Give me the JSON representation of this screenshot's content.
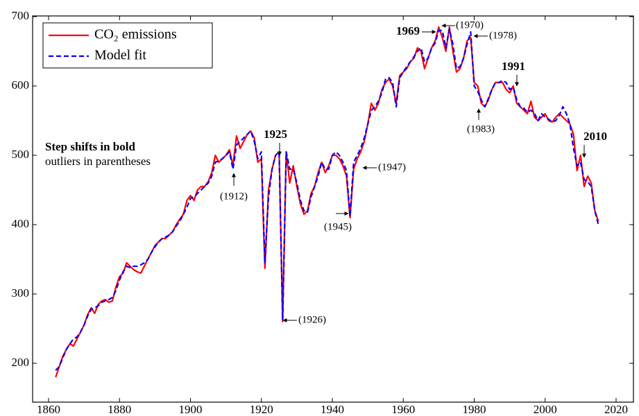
{
  "chart_data": {
    "type": "line",
    "x": [
      1862,
      1863,
      1864,
      1865,
      1866,
      1867,
      1868,
      1869,
      1870,
      1871,
      1872,
      1873,
      1874,
      1875,
      1876,
      1877,
      1878,
      1879,
      1880,
      1881,
      1882,
      1883,
      1884,
      1885,
      1886,
      1887,
      1888,
      1889,
      1890,
      1891,
      1892,
      1893,
      1894,
      1895,
      1896,
      1897,
      1898,
      1899,
      1900,
      1901,
      1902,
      1903,
      1904,
      1905,
      1906,
      1907,
      1908,
      1909,
      1910,
      1911,
      1912,
      1913,
      1914,
      1915,
      1916,
      1917,
      1918,
      1919,
      1920,
      1921,
      1922,
      1923,
      1924,
      1925,
      1926,
      1927,
      1928,
      1929,
      1930,
      1931,
      1932,
      1933,
      1934,
      1935,
      1936,
      1937,
      1938,
      1939,
      1940,
      1941,
      1942,
      1943,
      1944,
      1945,
      1946,
      1947,
      1948,
      1949,
      1950,
      1951,
      1952,
      1953,
      1954,
      1955,
      1956,
      1957,
      1958,
      1959,
      1960,
      1961,
      1962,
      1963,
      1964,
      1965,
      1966,
      1967,
      1968,
      1969,
      1970,
      1971,
      1972,
      1973,
      1974,
      1975,
      1976,
      1977,
      1978,
      1979,
      1980,
      1981,
      1982,
      1983,
      1984,
      1985,
      1986,
      1987,
      1988,
      1989,
      1990,
      1991,
      1992,
      1993,
      1994,
      1995,
      1996,
      1997,
      1998,
      1999,
      2000,
      2001,
      2002,
      2003,
      2004,
      2005,
      2006,
      2007,
      2008,
      2009,
      2010,
      2011,
      2012,
      2013,
      2014,
      2015
    ],
    "series": [
      {
        "name": "CO₂ emissions",
        "color": "#ff0000",
        "dash": false,
        "values": [
          180,
          195,
          210,
          220,
          228,
          225,
          235,
          245,
          255,
          270,
          280,
          272,
          285,
          290,
          292,
          288,
          290,
          310,
          325,
          330,
          345,
          340,
          335,
          332,
          330,
          340,
          350,
          360,
          370,
          375,
          380,
          380,
          385,
          390,
          400,
          408,
          415,
          435,
          442,
          435,
          450,
          455,
          455,
          462,
          475,
          500,
          490,
          495,
          500,
          508,
          485,
          528,
          510,
          520,
          530,
          535,
          525,
          490,
          495,
          337,
          450,
          480,
          500,
          505,
          260,
          505,
          460,
          485,
          455,
          430,
          415,
          420,
          445,
          455,
          475,
          490,
          475,
          485,
          500,
          500,
          495,
          485,
          470,
          410,
          480,
          495,
          505,
          520,
          545,
          575,
          565,
          575,
          595,
          605,
          610,
          600,
          575,
          615,
          620,
          625,
          635,
          640,
          655,
          650,
          625,
          640,
          655,
          665,
          685,
          670,
          650,
          685,
          650,
          620,
          625,
          640,
          665,
          670,
          605,
          600,
          575,
          570,
          580,
          595,
          605,
          605,
          605,
          595,
          590,
          600,
          575,
          570,
          565,
          560,
          578,
          555,
          550,
          555,
          560,
          550,
          548,
          555,
          560,
          555,
          550,
          545,
          530,
          478,
          500,
          455,
          470,
          460,
          420,
          405
        ]
      },
      {
        "name": "Model fit",
        "color": "#0000ff",
        "dash": true,
        "values": [
          190,
          195,
          208,
          220,
          228,
          235,
          238,
          245,
          255,
          268,
          278,
          280,
          283,
          288,
          290,
          292,
          295,
          305,
          320,
          332,
          340,
          338,
          340,
          340,
          342,
          345,
          350,
          360,
          368,
          375,
          380,
          382,
          385,
          390,
          398,
          405,
          415,
          425,
          438,
          440,
          445,
          450,
          455,
          460,
          470,
          490,
          492,
          495,
          500,
          505,
          480,
          515,
          520,
          525,
          530,
          535,
          520,
          495,
          505,
          345,
          440,
          480,
          500,
          505,
          262,
          505,
          480,
          480,
          460,
          435,
          420,
          418,
          440,
          455,
          470,
          490,
          480,
          480,
          500,
          505,
          500,
          490,
          478,
          412,
          490,
          500,
          510,
          525,
          545,
          565,
          570,
          578,
          590,
          610,
          612,
          605,
          570,
          612,
          620,
          628,
          635,
          642,
          650,
          655,
          635,
          640,
          655,
          662,
          680,
          680,
          655,
          682,
          660,
          625,
          628,
          640,
          660,
          678,
          600,
          592,
          580,
          570,
          582,
          595,
          605,
          605,
          608,
          605,
          595,
          598,
          580,
          570,
          568,
          562,
          565,
          560,
          550,
          560,
          555,
          552,
          548,
          550,
          558,
          570,
          560,
          545,
          510,
          485,
          490,
          465,
          462,
          455,
          420,
          400
        ]
      }
    ],
    "xlim": [
      1855.5,
      2024.9
    ],
    "ylim": [
      144,
      701
    ],
    "xticks": [
      1860,
      1880,
      1900,
      1920,
      1940,
      1960,
      1980,
      2000,
      2020
    ],
    "yticks": [
      200,
      300,
      400,
      500,
      600,
      700
    ],
    "legend": "top-left",
    "annotations": [
      "Step shifts in bold",
      "outliers in parentheses",
      "1925",
      "1969",
      "1991",
      "2010",
      "(1912)",
      "(1926)",
      "(1945)",
      "(1947)",
      "(1970)",
      "(1978)",
      "(1983)"
    ]
  }
}
